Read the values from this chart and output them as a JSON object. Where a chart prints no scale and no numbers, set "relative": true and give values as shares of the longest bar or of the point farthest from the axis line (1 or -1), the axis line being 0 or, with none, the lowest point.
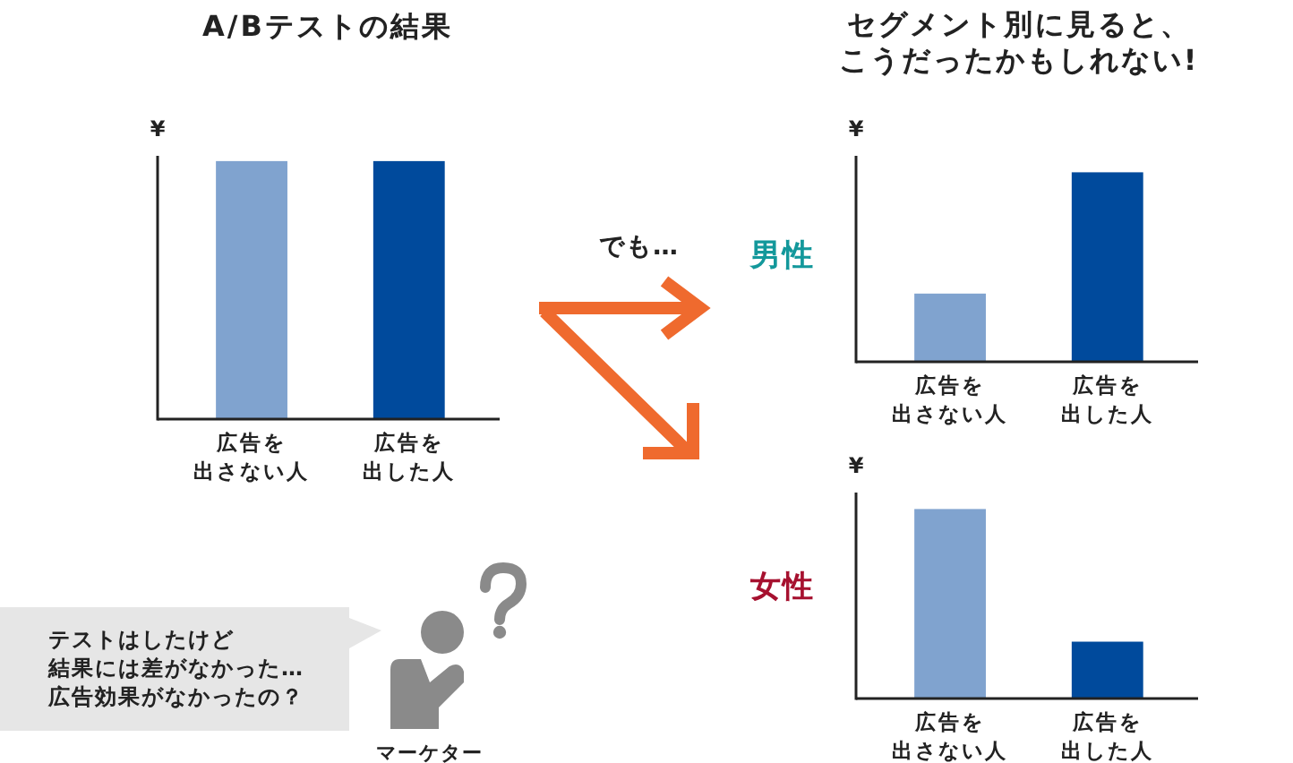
{
  "chart_data": [
    {
      "type": "bar",
      "title": "A/Bテストの結果",
      "ylabel": "¥",
      "categories": [
        "広告を出さない人",
        "広告を出した人"
      ],
      "values": [
        1,
        1
      ],
      "colors": [
        "#80a3cf",
        "#004a9c"
      ],
      "relative": true
    },
    {
      "type": "bar",
      "title": "セグメント別に見ると、こうだったかもしれない!",
      "ylabel": "¥",
      "categories": [
        "広告を出さない人",
        "広告を出した人"
      ],
      "values": [
        0.36,
        1
      ],
      "colors": [
        "#80a3cf",
        "#004a9c"
      ],
      "relative": true,
      "annotations": [
        "男性"
      ]
    },
    {
      "type": "bar",
      "ylabel": "¥",
      "categories": [
        "広告を出さない人",
        "広告を出した人"
      ],
      "values": [
        1,
        0.3
      ],
      "colors": [
        "#80a3cf",
        "#004a9c"
      ],
      "relative": true,
      "annotations": [
        "女性"
      ]
    },
    {
      "type": "other",
      "annotations": [
        "でも…",
        "テストはしたけど結果には差がなかった…広告効果がなかったの？",
        "マーケター"
      ]
    }
  ]
}
